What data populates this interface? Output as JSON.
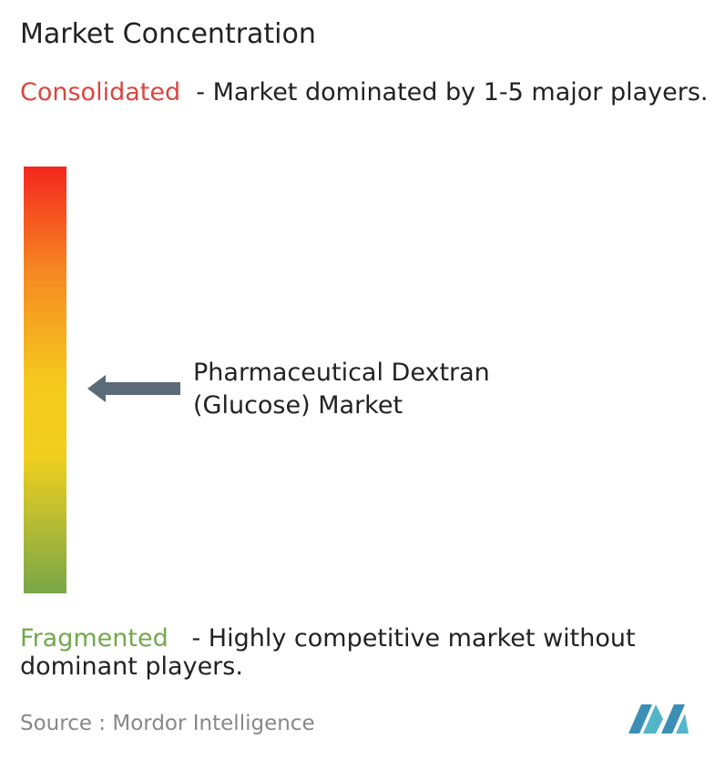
{
  "title": "Market Concentration",
  "scale": {
    "top": {
      "label": "Consolidated",
      "description": "  - Market dominated by 1-5 major players."
    },
    "bottom": {
      "label": "Fragmented",
      "description": "   - Highly competitive market without dominant players."
    }
  },
  "market": "Pharmaceutical Dextran (Glucose) Market",
  "source": "Source :  Mordor Intelligence"
}
